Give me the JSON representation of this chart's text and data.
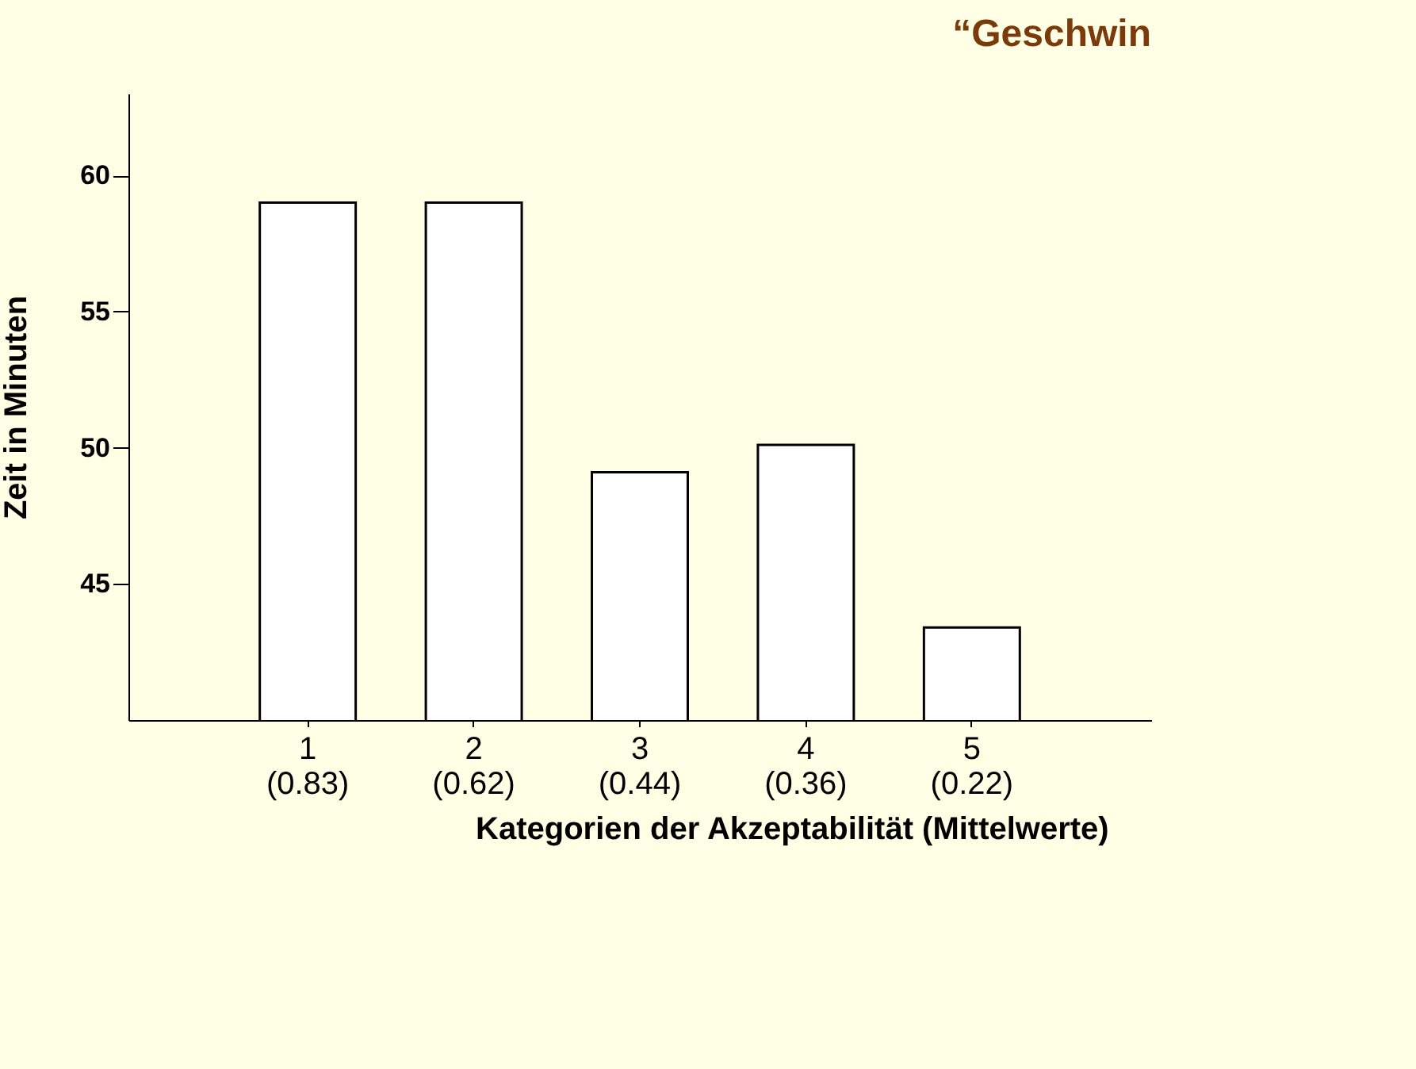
{
  "chart_data": {
    "type": "bar",
    "title": "“Geschwin",
    "xlabel": "Kategorien der Akzeptabilität (Mittelwerte)",
    "ylabel": "Zeit in Minuten",
    "categories": [
      "1\n(0.83)",
      "2\n(0.62)",
      "3\n(0.44)",
      "4\n(0.36)",
      "5\n(0.22)"
    ],
    "values": [
      59.0,
      59.0,
      49.1,
      50.1,
      43.4
    ],
    "color": "#ffffff",
    "ylim": [
      40,
      63
    ],
    "yticks": [
      45,
      50,
      55,
      60
    ],
    "grid": false
  }
}
